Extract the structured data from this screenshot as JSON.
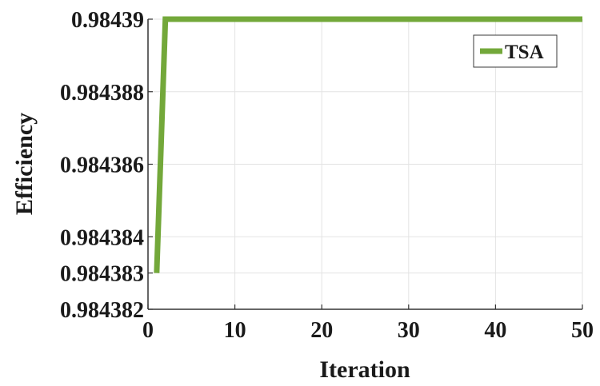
{
  "chart_data": {
    "type": "line",
    "title": "",
    "xlabel": "Iteration",
    "ylabel": "Efficiency",
    "xlim": [
      0,
      50
    ],
    "ylim": [
      0.984382,
      0.98439
    ],
    "x_ticks": [
      {
        "value": 0,
        "label": "0"
      },
      {
        "value": 10,
        "label": "10"
      },
      {
        "value": 20,
        "label": "20"
      },
      {
        "value": 30,
        "label": "30"
      },
      {
        "value": 40,
        "label": "40"
      },
      {
        "value": 50,
        "label": "50"
      }
    ],
    "y_ticks": [
      {
        "value": 0.984382,
        "label": "0.984382"
      },
      {
        "value": 0.984383,
        "label": "0.984383"
      },
      {
        "value": 0.984384,
        "label": "0.984384"
      },
      {
        "value": 0.984386,
        "label": "0.984386"
      },
      {
        "value": 0.984388,
        "label": "0.984388"
      },
      {
        "value": 0.98439,
        "label": "0.98439"
      }
    ],
    "grid": true,
    "legend": "top-right",
    "series": [
      {
        "name": "TSA",
        "color": "#73a83a",
        "x": [
          1,
          2,
          3,
          4,
          5,
          10,
          15,
          20,
          25,
          30,
          35,
          40,
          45,
          50
        ],
        "y": [
          0.984383,
          0.98439,
          0.98439,
          0.98439,
          0.98439,
          0.98439,
          0.98439,
          0.98439,
          0.98439,
          0.98439,
          0.98439,
          0.98439,
          0.98439,
          0.98439
        ]
      }
    ]
  }
}
